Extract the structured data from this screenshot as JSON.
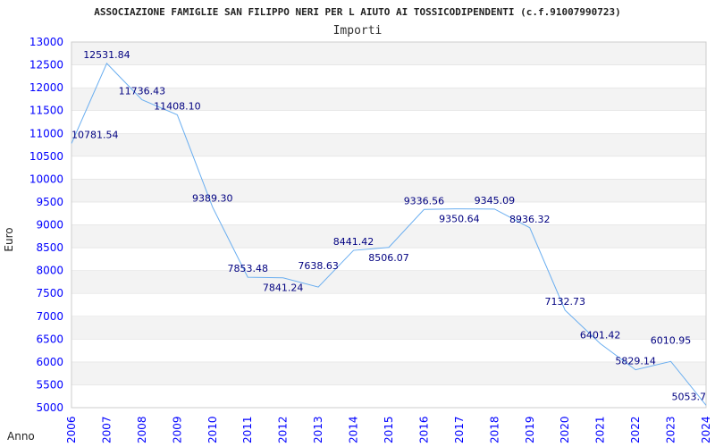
{
  "chart_data": {
    "type": "line",
    "title": "ASSOCIAZIONE FAMIGLIE SAN FILIPPO NERI PER L AIUTO AI TOSSICODIPENDENTI (c.f.91007990723)",
    "subtitle": "Importi",
    "xlabel": "Anno",
    "ylabel": "Euro",
    "ylim": [
      5000,
      13000
    ],
    "yticks": [
      5000,
      5500,
      6000,
      6500,
      7000,
      7500,
      8000,
      8500,
      9000,
      9500,
      10000,
      10500,
      11000,
      11500,
      12000,
      12500,
      13000
    ],
    "x": [
      "2006",
      "2007",
      "2008",
      "2009",
      "2010",
      "2011",
      "2012",
      "2013",
      "2014",
      "2015",
      "2016",
      "2017",
      "2018",
      "2019",
      "2020",
      "2021",
      "2022",
      "2023",
      "2024"
    ],
    "values": [
      10781.54,
      12531.84,
      11736.43,
      11408.1,
      9389.3,
      7853.48,
      7841.24,
      7638.63,
      8441.42,
      8506.07,
      9336.56,
      9350.64,
      9345.09,
      8936.32,
      7132.73,
      6401.42,
      5829.14,
      6010.95,
      5053.7
    ],
    "labels": [
      "10781.54",
      "12531.84",
      "11736.43",
      "11408.10",
      "9389.30",
      "7853.48",
      "7841.24",
      "7638.63",
      "8441.42",
      "8506.07",
      "9336.56",
      "9350.64",
      "9345.09",
      "8936.32",
      "7132.73",
      "6401.42",
      "5829.14",
      "6010.95",
      "5053.7"
    ],
    "grid": true,
    "colors": {
      "line": "#6aaef0",
      "tick": "#0000ff",
      "label": "#000080",
      "band": "#f3f3f3"
    }
  }
}
